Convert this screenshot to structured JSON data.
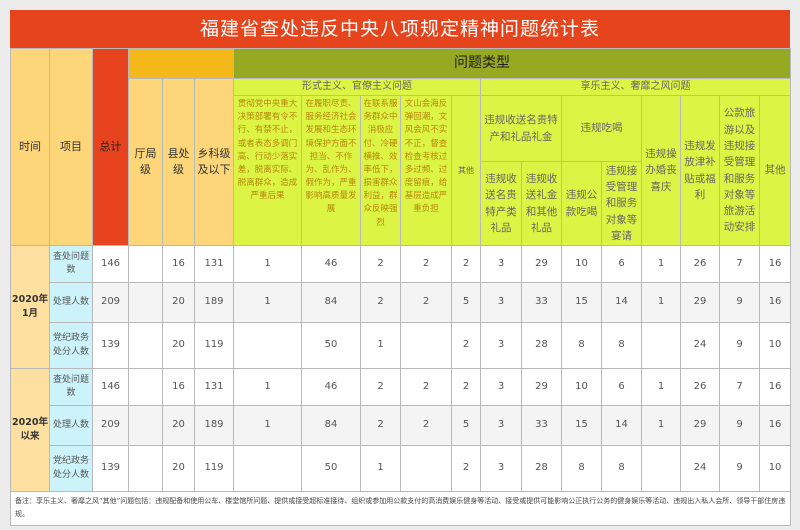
{
  "title": "福建省查处违反中央八项规定精神问题统计表",
  "header": {
    "time": "时间",
    "item": "项目",
    "total": "总计",
    "problem_type": "问题类型",
    "levels": [
      "厅局级",
      "县处级",
      "乡科级及以下"
    ],
    "formalism": {
      "label": "形式主义、官僚主义问题",
      "cols": [
        "贯彻党中央重大决策部署有令不行、有禁不止，或者表态多调门高、行动少落实差，脱离实际、脱离群众，造成严重后果",
        "在履职尽责、服务经济社会发展和生态环境保护方面不担当、不作为、乱作为、假作为，严重影响高质量发展",
        "在联系服务群众中消极应付、冷硬横推、效率低下，损害群众利益，群众反映强烈",
        "文山会海反弹回潮，文风会风不实不正，督查检查考核过多过频、过度留痕，给基层造成严重负担",
        "其他"
      ]
    },
    "hedonism": {
      "label": "享乐主义、奢靡之风问题",
      "gift_group": "违规收送名贵特产和礼品礼金",
      "gift_cols": [
        "违规收送名贵特产类礼品",
        "违规收送礼金和其他礼品"
      ],
      "dining_group": "违规吃喝",
      "dining_cols": [
        "违规公款吃喝",
        "违规接受管理和服务对象等宴请"
      ],
      "cols": [
        "违规操办婚丧喜庆",
        "违规发放津补贴或福利",
        "公款旅游以及违规接受管理和服务对象等旅游活动安排",
        "其他"
      ]
    }
  },
  "groups": [
    {
      "time": "2020年1月",
      "rows": [
        {
          "item": "查处问题数",
          "values": [
            "146",
            "",
            "16",
            "131",
            "1",
            "46",
            "2",
            "2",
            "2",
            "3",
            "29",
            "10",
            "6",
            "1",
            "26",
            "7",
            "16"
          ]
        },
        {
          "item": "处理人数",
          "values": [
            "209",
            "",
            "20",
            "189",
            "1",
            "84",
            "2",
            "2",
            "5",
            "3",
            "33",
            "15",
            "14",
            "1",
            "29",
            "9",
            "16"
          ]
        },
        {
          "item": "党纪政务处分人数",
          "values": [
            "139",
            "",
            "20",
            "119",
            "",
            "50",
            "1",
            "",
            "2",
            "3",
            "28",
            "8",
            "8",
            "",
            "24",
            "9",
            "10"
          ]
        }
      ]
    },
    {
      "time": "2020年以来",
      "rows": [
        {
          "item": "查处问题数",
          "values": [
            "146",
            "",
            "16",
            "131",
            "1",
            "46",
            "2",
            "2",
            "2",
            "3",
            "29",
            "10",
            "6",
            "1",
            "26",
            "7",
            "16"
          ]
        },
        {
          "item": "处理人数",
          "values": [
            "209",
            "",
            "20",
            "189",
            "1",
            "84",
            "2",
            "2",
            "5",
            "3",
            "33",
            "15",
            "14",
            "1",
            "29",
            "9",
            "16"
          ]
        },
        {
          "item": "党纪政务处分人数",
          "values": [
            "139",
            "",
            "20",
            "119",
            "",
            "50",
            "1",
            "",
            "2",
            "3",
            "28",
            "8",
            "8",
            "",
            "24",
            "9",
            "10"
          ]
        }
      ]
    }
  ],
  "footnote": "备注：享乐主义、奢靡之风“其他”问题包括：违规配备和使用公车、楼堂馆所问题、提供或接受超标准接待、组织或参加用公款支付的高消费娱乐健身等活动、接受或提供可能影响公正执行公务的健身娱乐等活动、违规出入私人会所、领导干部住房违规。",
  "colors": {
    "title_bg": "#e5441c",
    "total_bg": "#e8431f",
    "header_yellow": "#fdd67a",
    "header_orange": "#f5b81a",
    "header_green": "#95aa22",
    "header_lime": "#dcf545",
    "item_cyan": "#cdf3fa"
  }
}
